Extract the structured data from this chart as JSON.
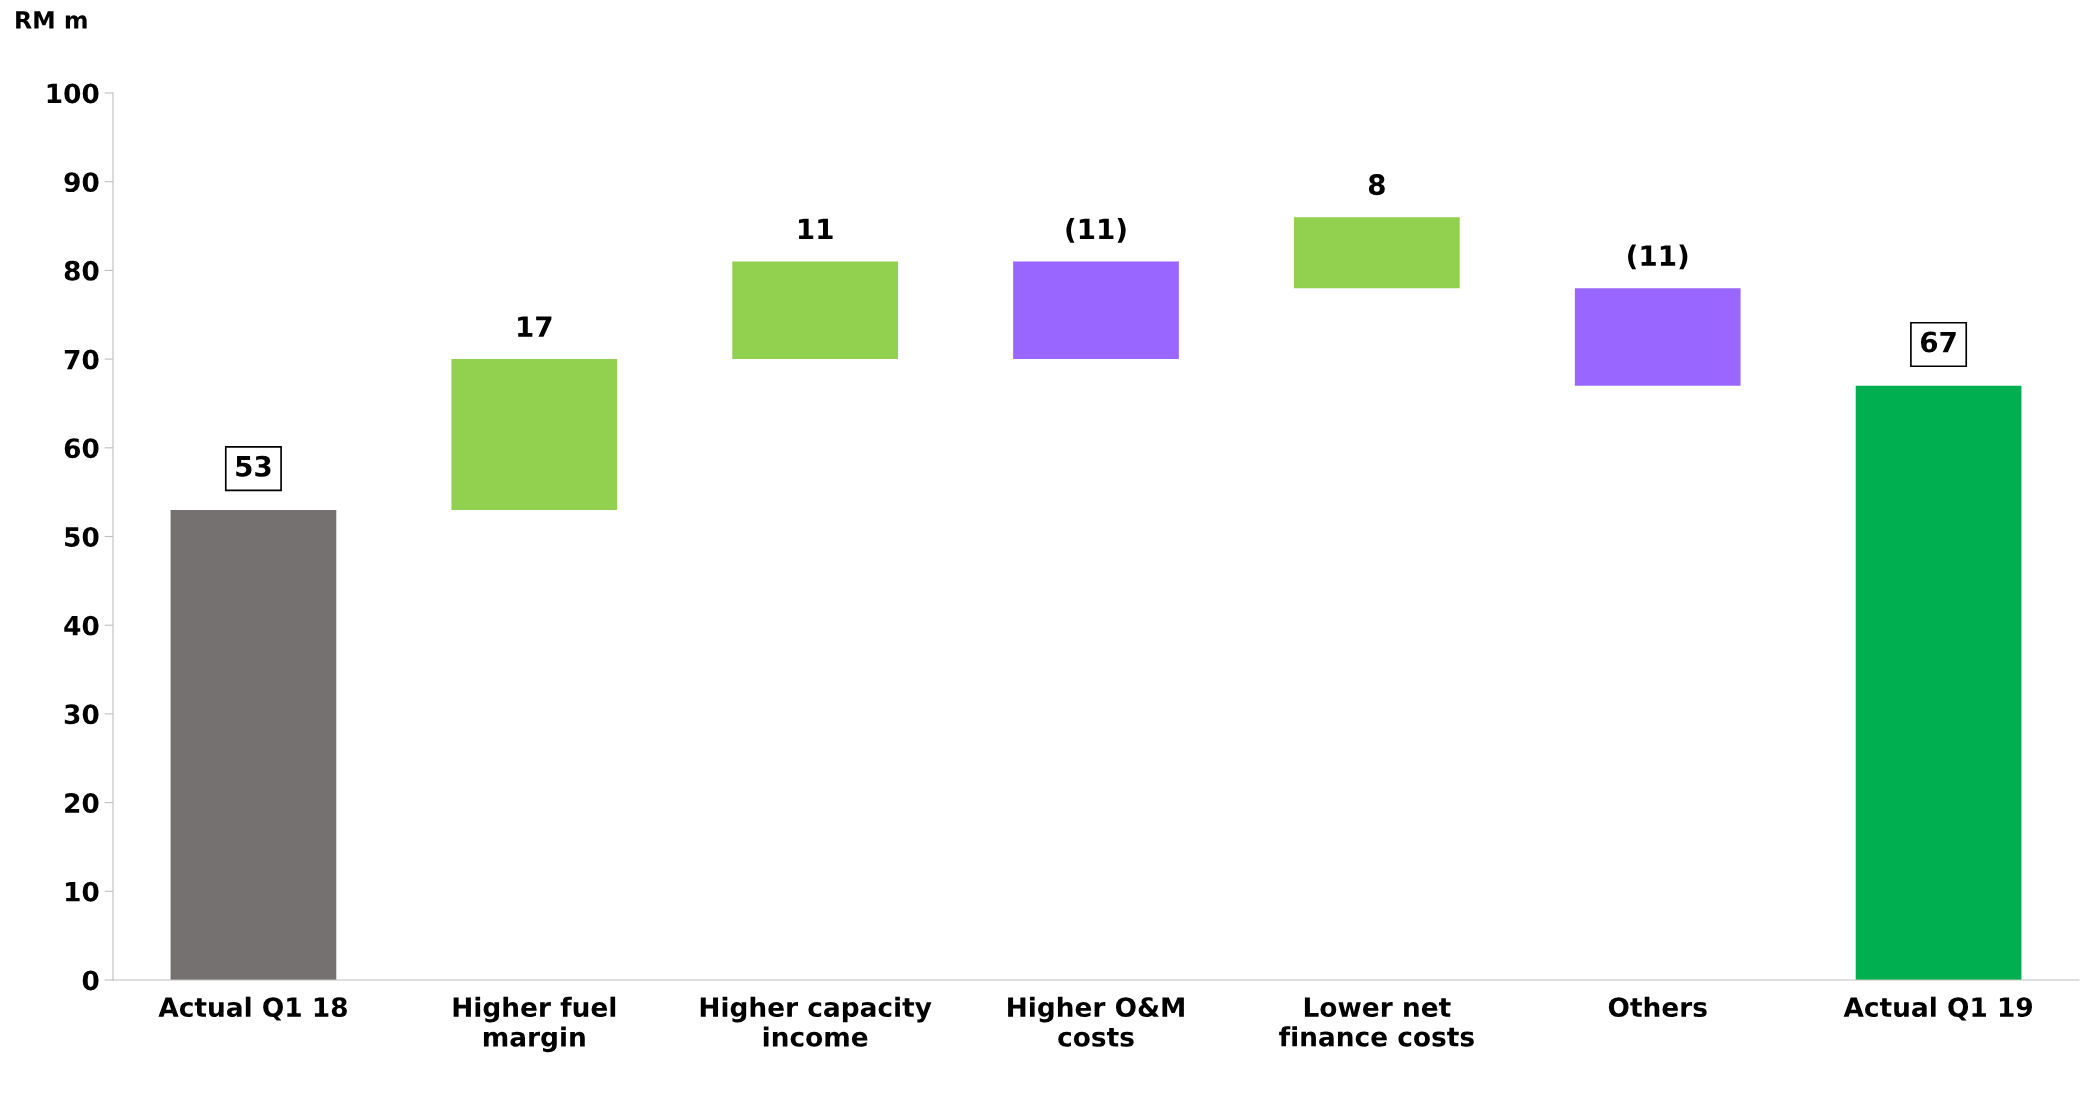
{
  "chart_data": {
    "type": "bar",
    "ylabel": "RM m",
    "categories": [
      "Actual Q1 18",
      "Higher fuel\nmargin",
      "Higher capacity\nincome",
      "Higher O&M\ncosts",
      "Lower net\nfinance costs",
      "Others",
      "Actual Q1 19"
    ],
    "values": [
      53,
      17,
      11,
      -11,
      8,
      -11,
      67
    ],
    "base": [
      0,
      53,
      70,
      81,
      78,
      78,
      0
    ],
    "colors": [
      "#767171",
      "#92d050",
      "#92d050",
      "#9966ff",
      "#92d050",
      "#9966ff",
      "#00b050"
    ],
    "value_labels": [
      "53",
      "17",
      "11",
      "(11)",
      "8",
      "(11)",
      "67"
    ],
    "ylim": [
      0,
      100
    ],
    "yticks": [
      0,
      10,
      20,
      30,
      40,
      50,
      60,
      70,
      80,
      90,
      100
    ],
    "grid": false,
    "legend": false
  }
}
